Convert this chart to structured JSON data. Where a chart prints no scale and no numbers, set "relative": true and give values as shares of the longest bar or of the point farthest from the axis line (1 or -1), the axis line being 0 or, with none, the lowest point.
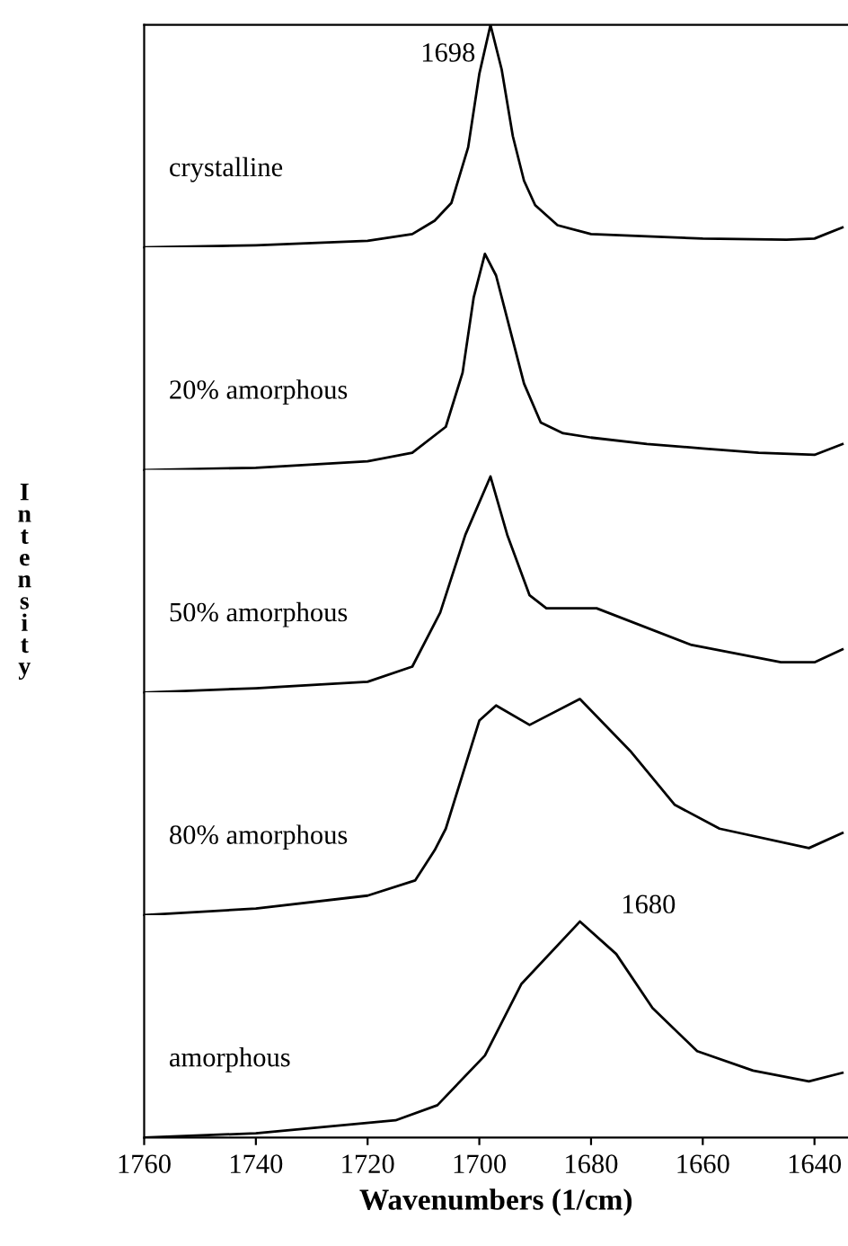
{
  "chart_data": [
    {
      "type": "line",
      "relative": true,
      "xlim": [
        1760,
        1634
      ],
      "tick_labels": false,
      "annotations": [
        {
          "text": "1698",
          "x": 1698,
          "y": 1.0
        }
      ],
      "series": [
        {
          "name": "crystalline",
          "color": "#000000",
          "x": [
            1760,
            1740,
            1720,
            1712,
            1708,
            1705,
            1702,
            1700,
            1698,
            1696,
            1694,
            1692,
            1690,
            1686,
            1680,
            1670,
            1660,
            1645,
            1640,
            1635
          ],
          "values": [
            0,
            0.01,
            0.03,
            0.06,
            0.12,
            0.2,
            0.45,
            0.78,
            1.0,
            0.8,
            0.5,
            0.3,
            0.19,
            0.1,
            0.06,
            0.05,
            0.04,
            0.035,
            0.04,
            0.09
          ]
        }
      ]
    },
    {
      "type": "line",
      "relative": true,
      "xlim": [
        1760,
        1634
      ],
      "tick_labels": false,
      "series": [
        {
          "name": "20% amorphous",
          "color": "#000000",
          "x": [
            1760,
            1740,
            1720,
            1712,
            1706,
            1703,
            1701,
            1699,
            1697,
            1694,
            1692,
            1689,
            1685,
            1680,
            1670,
            1660,
            1650,
            1640,
            1635
          ],
          "values": [
            0,
            0.01,
            0.04,
            0.08,
            0.2,
            0.45,
            0.8,
            1.0,
            0.9,
            0.6,
            0.4,
            0.22,
            0.17,
            0.15,
            0.12,
            0.1,
            0.08,
            0.07,
            0.12
          ]
        }
      ]
    },
    {
      "type": "line",
      "relative": true,
      "xlim": [
        1760,
        1634
      ],
      "tick_labels": false,
      "ylabel": "Intensity",
      "series": [
        {
          "name": "50% amorphous",
          "color": "#000000",
          "x": [
            1760,
            1740,
            1720,
            1712,
            1707,
            1702.5,
            1698,
            1695,
            1691,
            1688,
            1679,
            1662,
            1646,
            1640,
            1635
          ],
          "values": [
            0,
            0.02,
            0.05,
            0.12,
            0.37,
            0.73,
            1.0,
            0.73,
            0.45,
            0.39,
            0.39,
            0.22,
            0.14,
            0.14,
            0.2
          ]
        }
      ]
    },
    {
      "type": "line",
      "relative": true,
      "xlim": [
        1760,
        1634
      ],
      "tick_labels": false,
      "series": [
        {
          "name": "80% amorphous",
          "color": "#000000",
          "x": [
            1760,
            1740,
            1720,
            1711.5,
            1708,
            1706,
            1700,
            1697,
            1691,
            1682,
            1673,
            1665,
            1657,
            1641,
            1635
          ],
          "values": [
            0,
            0.03,
            0.09,
            0.16,
            0.3,
            0.4,
            0.9,
            0.97,
            0.88,
            1.0,
            0.76,
            0.51,
            0.4,
            0.31,
            0.38
          ]
        }
      ]
    },
    {
      "type": "line",
      "relative": true,
      "xlim": [
        1760,
        1634
      ],
      "xticks": [
        1760,
        1740,
        1720,
        1700,
        1680,
        1660,
        1640
      ],
      "tick_labels": "x",
      "xlabel": "Wavenumbers (1/cm)",
      "annotations": [
        {
          "text": "1680",
          "x": 1680,
          "y": 1.0
        }
      ],
      "series": [
        {
          "name": "amorphous",
          "color": "#000000",
          "x": [
            1760,
            1740,
            1715,
            1707.5,
            1699,
            1692.5,
            1682,
            1675.5,
            1669,
            1661,
            1651,
            1641,
            1635
          ],
          "values": [
            0,
            0.02,
            0.08,
            0.15,
            0.38,
            0.71,
            1.0,
            0.85,
            0.6,
            0.4,
            0.31,
            0.26,
            0.3
          ]
        }
      ]
    }
  ]
}
